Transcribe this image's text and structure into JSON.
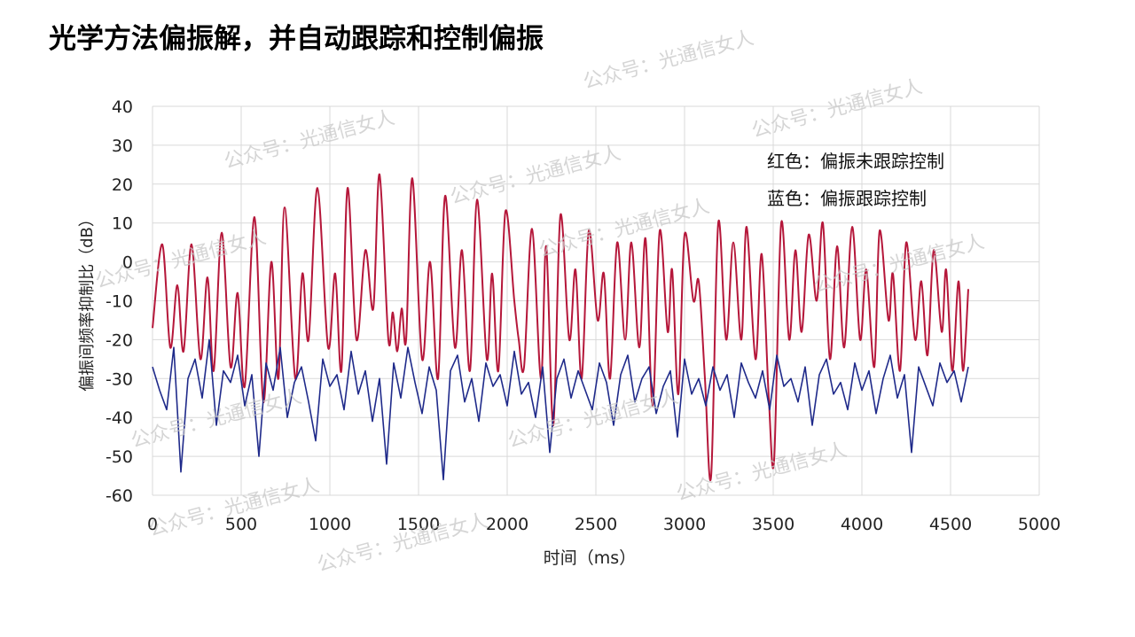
{
  "chart_data": {
    "type": "line",
    "title": "光学方法偏振解，并自动跟踪和控制偏振",
    "x_label": "时间（ms）",
    "y_label": "偏振间频率抑制比（dB）",
    "xlim": [
      0,
      5000
    ],
    "xticks": [
      0,
      500,
      1000,
      1500,
      2000,
      2500,
      3000,
      3500,
      4000,
      4500,
      5000
    ],
    "ylim": [
      -60,
      40
    ],
    "yticks": [
      -60,
      -50,
      -40,
      -30,
      -20,
      -10,
      0,
      10,
      20,
      30,
      40
    ],
    "grid": true,
    "series": [
      {
        "name": "红色：偏振未跟踪控制",
        "color": "#b5173a",
        "x": [
          0,
          55,
          100,
          140,
          175,
          220,
          270,
          310,
          345,
          390,
          440,
          480,
          520,
          575,
          625,
          670,
          710,
          745,
          805,
          845,
          880,
          930,
          990,
          1030,
          1065,
          1100,
          1150,
          1200,
          1245,
          1280,
          1330,
          1355,
          1380,
          1405,
          1430,
          1465,
          1520,
          1565,
          1610,
          1650,
          1705,
          1745,
          1790,
          1830,
          1885,
          1915,
          1950,
          1990,
          2040,
          2065,
          2095,
          2140,
          2190,
          2220,
          2260,
          2300,
          2350,
          2385,
          2420,
          2460,
          2510,
          2545,
          2580,
          2620,
          2665,
          2700,
          2745,
          2780,
          2820,
          2860,
          2905,
          2930,
          2965,
          3000,
          3050,
          3080,
          3115,
          3150,
          3190,
          3235,
          3275,
          3320,
          3350,
          3400,
          3435,
          3475,
          3505,
          3545,
          3590,
          3625,
          3660,
          3700,
          3745,
          3780,
          3820,
          3860,
          3900,
          3945,
          3990,
          4025,
          4070,
          4100,
          4150,
          4175,
          4215,
          4250,
          4300,
          4335,
          4370,
          4405,
          4450,
          4475,
          4510,
          4545,
          4570,
          4600
        ],
        "values": [
          -17,
          4.5,
          -22,
          -6,
          -23,
          4.5,
          -25,
          -4,
          -28,
          7.5,
          -27,
          -8,
          -32,
          11.5,
          -36,
          0,
          -30,
          14,
          -30,
          -3,
          -20,
          19,
          -22,
          -3,
          -28,
          19,
          -20,
          3,
          -12,
          22.5,
          -20,
          -13,
          -23,
          -12,
          -20,
          21.5,
          -25,
          0,
          -30,
          17,
          -22,
          3,
          -28,
          16,
          -25,
          -3,
          -28,
          13,
          -10,
          -20,
          -27,
          8.5,
          -30,
          4,
          -42,
          12,
          -20,
          -2,
          -30,
          8,
          -15,
          -3,
          -30,
          5,
          -20,
          5,
          -22,
          6,
          -37,
          8,
          -18,
          -2,
          -34,
          7,
          -10,
          -5,
          -30,
          -55,
          10,
          -20,
          5,
          -20,
          9,
          -25,
          2,
          -35,
          -51,
          10,
          -20,
          3,
          -18,
          7,
          -10,
          10,
          -25,
          4,
          -22,
          9,
          -20,
          -2,
          -27,
          8,
          -15,
          -3,
          -28,
          5,
          -20,
          -5,
          -24,
          3,
          -18,
          -2,
          -28,
          -5,
          -28,
          -7
        ]
      },
      {
        "name": "蓝色：偏振跟踪控制",
        "color": "#1f2a8a",
        "x": [
          0,
          40,
          80,
          120,
          160,
          200,
          240,
          280,
          320,
          360,
          400,
          440,
          480,
          520,
          560,
          600,
          640,
          680,
          720,
          760,
          800,
          840,
          880,
          920,
          960,
          1000,
          1040,
          1080,
          1120,
          1160,
          1200,
          1240,
          1280,
          1320,
          1360,
          1400,
          1440,
          1480,
          1520,
          1560,
          1600,
          1640,
          1680,
          1720,
          1760,
          1800,
          1840,
          1880,
          1920,
          1960,
          2000,
          2040,
          2080,
          2120,
          2160,
          2200,
          2240,
          2280,
          2320,
          2360,
          2400,
          2440,
          2480,
          2520,
          2560,
          2600,
          2640,
          2680,
          2720,
          2760,
          2800,
          2840,
          2880,
          2920,
          2960,
          3000,
          3040,
          3080,
          3120,
          3160,
          3200,
          3240,
          3280,
          3320,
          3360,
          3400,
          3440,
          3480,
          3520,
          3560,
          3600,
          3640,
          3680,
          3720,
          3760,
          3800,
          3840,
          3880,
          3920,
          3960,
          4000,
          4040,
          4080,
          4120,
          4160,
          4200,
          4240,
          4280,
          4320,
          4360,
          4400,
          4440,
          4480,
          4520,
          4560,
          4600
        ],
        "values": [
          -27,
          -33,
          -38,
          -22,
          -54,
          -30,
          -25,
          -35,
          -20,
          -42,
          -28,
          -31,
          -24,
          -37,
          -29,
          -50,
          -26,
          -33,
          -22,
          -40,
          -31,
          -27,
          -36,
          -46,
          -25,
          -32,
          -29,
          -38,
          -23,
          -34,
          -28,
          -41,
          -30,
          -52,
          -26,
          -35,
          -22,
          -31,
          -39,
          -27,
          -33,
          -56,
          -28,
          -24,
          -36,
          -30,
          -41,
          -26,
          -32,
          -29,
          -37,
          -23,
          -34,
          -31,
          -40,
          -27,
          -49,
          -30,
          -25,
          -35,
          -28,
          -33,
          -38,
          -26,
          -31,
          -42,
          -29,
          -24,
          -36,
          -30,
          -27,
          -39,
          -32,
          -28,
          -45,
          -25,
          -34,
          -30,
          -37,
          -27,
          -33,
          -29,
          -40,
          -26,
          -31,
          -35,
          -28,
          -38,
          -24,
          -32,
          -30,
          -36,
          -27,
          -42,
          -29,
          -25,
          -34,
          -31,
          -38,
          -26,
          -33,
          -28,
          -39,
          -30,
          -24,
          -35,
          -29,
          -49,
          -27,
          -32,
          -37,
          -26,
          -31,
          -28,
          -36,
          -27
        ]
      }
    ],
    "watermarks": [
      "公众号：光通信女人",
      "公众号：光通信女人",
      "公众号：光通信女人",
      "公众号：光通信女人",
      "公众号：光通信女人",
      "公众号：光通信女人",
      "公众号：光通信女人",
      "公众号：光通信女人",
      "公众号：光通信女人",
      "公众号：光通信女人",
      "公众号：光通信女人",
      "公众号：光通信女人"
    ]
  }
}
